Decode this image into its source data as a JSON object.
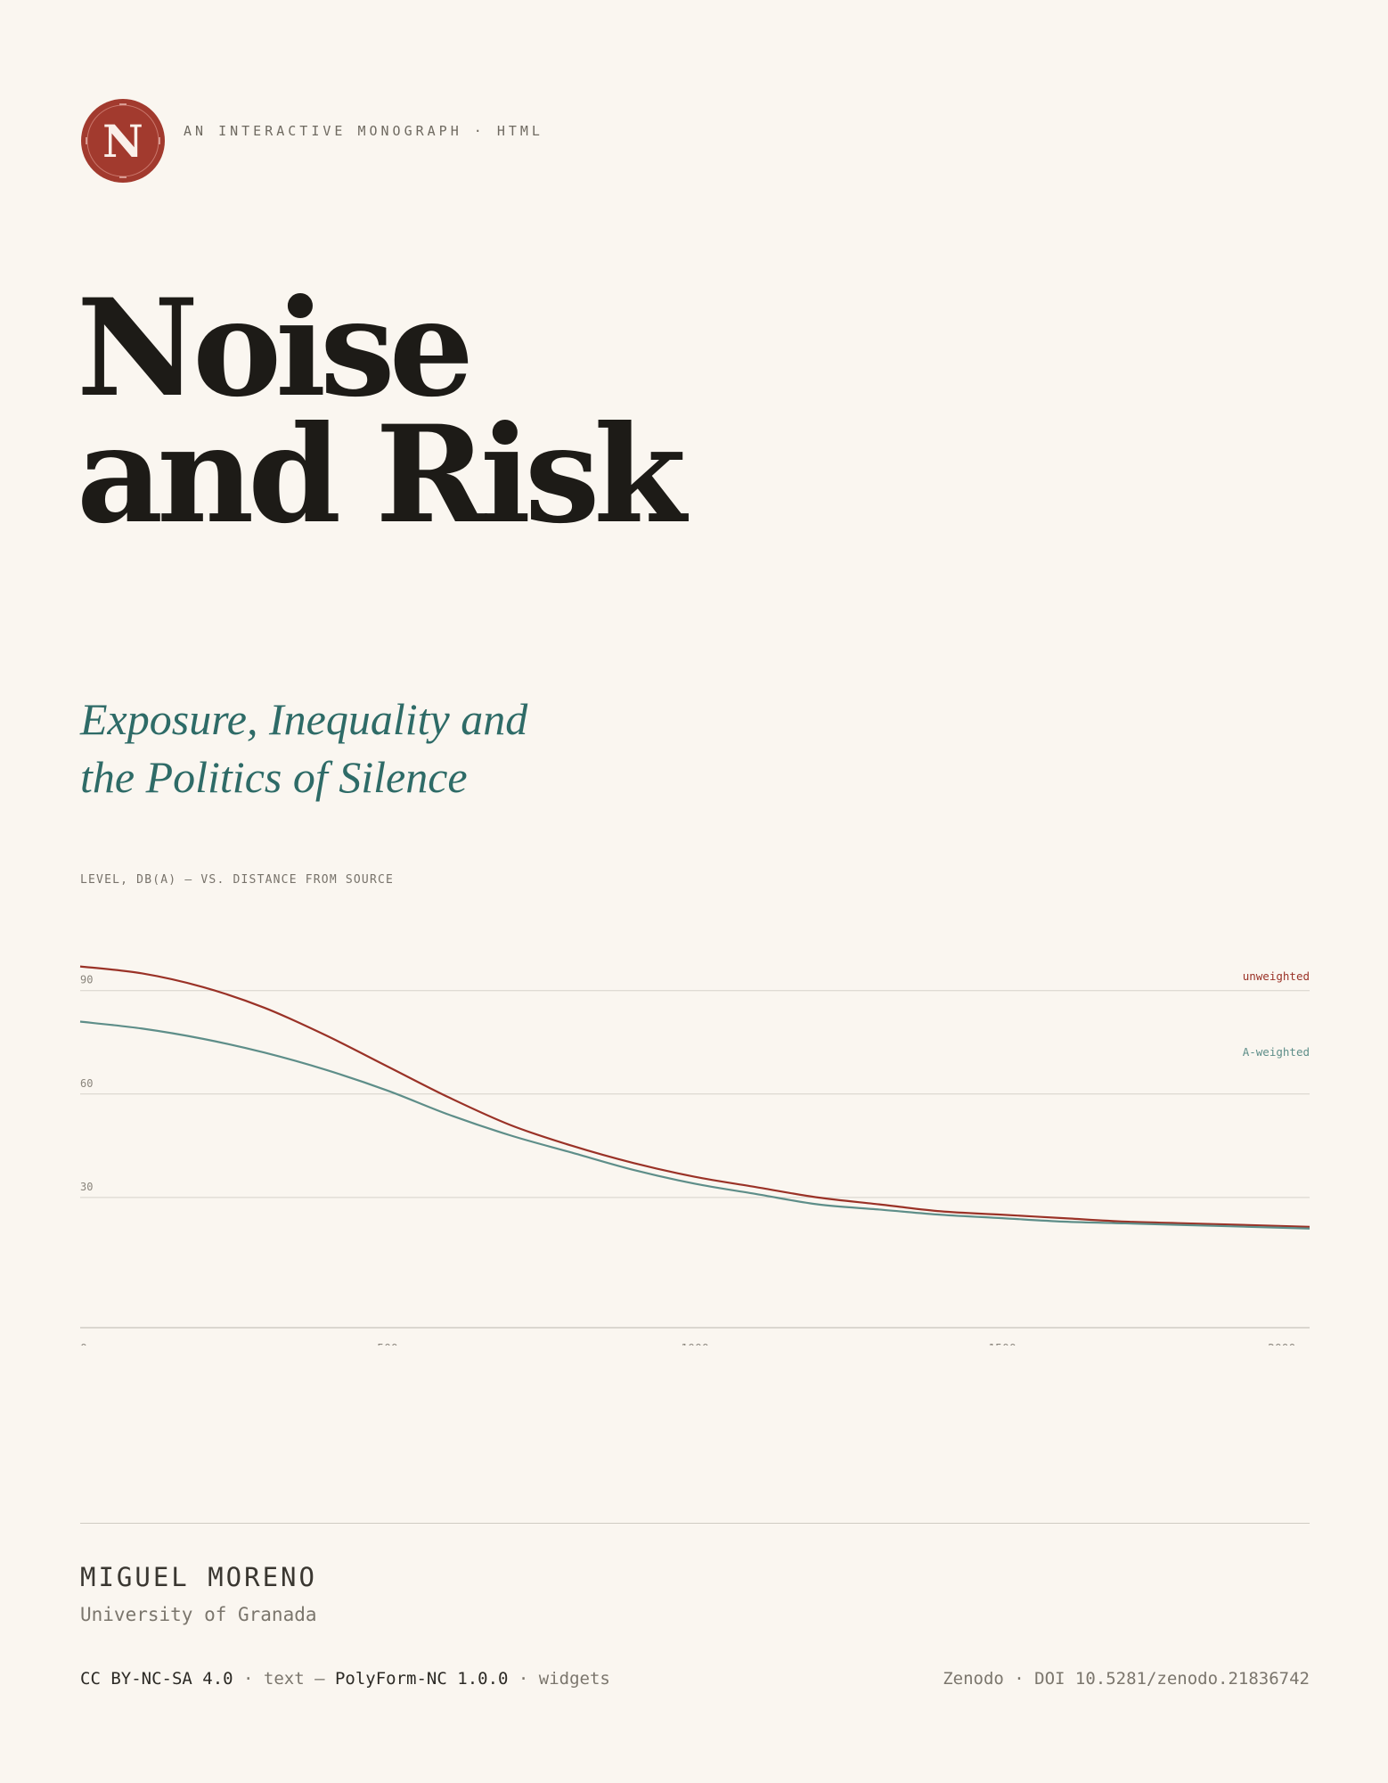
{
  "header": {
    "logo_letter": "N",
    "kicker": "AN INTERACTIVE MONOGRAPH · HTML"
  },
  "title": {
    "line1": "Noise",
    "line2": "and Risk"
  },
  "subtitle": {
    "line1": "Exposure, Inequality and",
    "line2": "the Politics of Silence"
  },
  "colors": {
    "accent_red": "#9a3227",
    "accent_teal": "#2e6b67",
    "background": "#faf6f0"
  },
  "chart_data": {
    "type": "line",
    "title": "LEVEL, DB(A) — VS. DISTANCE FROM SOURCE",
    "xlabel": "",
    "ylabel": "",
    "xlim": [
      0,
      2000
    ],
    "ylim": [
      0,
      100
    ],
    "x_ticks": [
      0,
      500,
      1000,
      1500,
      2000
    ],
    "x_tick_labels": [
      "0 m",
      "500",
      "1000",
      "1500",
      "2000 m"
    ],
    "y_ticks": [
      30,
      60,
      90
    ],
    "y_tick_labels": [
      "30",
      "60",
      "90"
    ],
    "grid": true,
    "legend": "right",
    "series": [
      {
        "name": "unweighted",
        "color": "#9a3227",
        "x": [
          0,
          100,
          200,
          300,
          400,
          500,
          600,
          700,
          800,
          900,
          1000,
          1100,
          1200,
          1300,
          1400,
          1500,
          1600,
          1700,
          1800,
          1900,
          2000
        ],
        "values": [
          97,
          95,
          91,
          85,
          77,
          68,
          59,
          51,
          45,
          40,
          36,
          33,
          30,
          28,
          26,
          25,
          24,
          23,
          22.5,
          22,
          21.5
        ]
      },
      {
        "name": "A-weighted",
        "color": "#5e8e89",
        "x": [
          0,
          100,
          200,
          300,
          400,
          500,
          600,
          700,
          800,
          900,
          1000,
          1100,
          1200,
          1300,
          1400,
          1500,
          1600,
          1700,
          1800,
          1900,
          2000
        ],
        "values": [
          81,
          79,
          76,
          72,
          67,
          61,
          54,
          48,
          43,
          38,
          34,
          31,
          28,
          26.5,
          25,
          24,
          23,
          22.5,
          22,
          21.5,
          21
        ]
      }
    ]
  },
  "footer": {
    "author": "MIGUEL MORENO",
    "affiliation": "University of Granada",
    "license_text": "CC BY-NC-SA 4.0",
    "license_text_note": " · text — ",
    "license_widgets": "PolyForm-NC 1.0.0",
    "license_widgets_note": " · widgets",
    "repository": "Zenodo · DOI 10.5281/zenodo.21836742"
  }
}
